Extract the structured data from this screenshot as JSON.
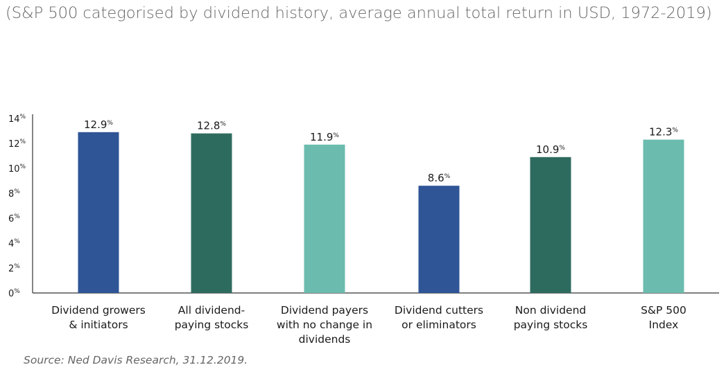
{
  "subtitle": "(S&P 500 categorised by dividend history, average annual total return in USD, 1972-2019)",
  "source": "Source: Ned Davis Research, 31.12.2019.",
  "chart_data": {
    "type": "bar",
    "title": "",
    "xlabel": "",
    "ylabel": "",
    "ylim": [
      0,
      14
    ],
    "yticks": [
      0,
      2,
      4,
      6,
      8,
      10,
      12,
      14
    ],
    "tick_suffix": "%",
    "grid": false,
    "categories": [
      [
        "Dividend growers",
        "& initiators"
      ],
      [
        "All dividend-",
        "paying stocks"
      ],
      [
        "Dividend payers",
        "with no change in",
        "dividends"
      ],
      [
        "Dividend cutters",
        "or eliminators"
      ],
      [
        "Non dividend",
        "paying stocks"
      ],
      [
        "S&P 500",
        "Index"
      ]
    ],
    "values": [
      12.9,
      12.8,
      11.9,
      8.6,
      10.9,
      12.3
    ],
    "value_labels": [
      "12.9",
      "12.8",
      "11.9",
      "8.6",
      "10.9",
      "12.3"
    ],
    "bar_colors": [
      "#2f5597",
      "#2e6b5f",
      "#6bbcae",
      "#2f5597",
      "#2e6b5f",
      "#6bbcae"
    ]
  }
}
